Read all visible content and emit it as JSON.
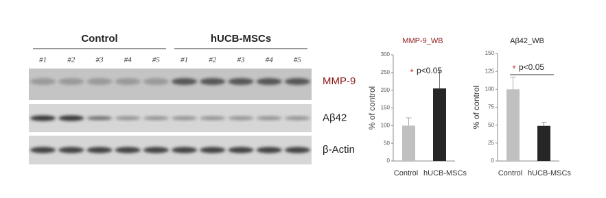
{
  "blot": {
    "groups": [
      "Control",
      "hUCB-MSCs"
    ],
    "lanes": [
      "#1",
      "#2",
      "#3",
      "#4",
      "#5",
      "#1",
      "#2",
      "#3",
      "#4",
      "#5"
    ],
    "rows": [
      "MMP-9",
      "Aβ42",
      "β-Actin"
    ]
  },
  "chart_data": [
    {
      "type": "bar",
      "title": "MMP-9_WB",
      "y_label": "% of control",
      "categories": [
        "Control",
        "hUCB-MSCs"
      ],
      "values": [
        100,
        205
      ],
      "errors": [
        22,
        50
      ],
      "colors": [
        "#c0c0c0",
        "#262626"
      ],
      "ylim": [
        0,
        300
      ],
      "yticks": [
        0,
        50,
        100,
        150,
        200,
        250,
        300
      ],
      "significance_mark": "*",
      "annotation": "p<0.05"
    },
    {
      "type": "bar",
      "title": "Aβ42_WB",
      "y_label": "% of control",
      "categories": [
        "Control",
        "hUCB-MSCs"
      ],
      "values": [
        100,
        49
      ],
      "errors": [
        17,
        5
      ],
      "colors": [
        "#c0c0c0",
        "#262626"
      ],
      "ylim": [
        0,
        150
      ],
      "yticks": [
        0,
        25,
        50,
        75,
        100,
        125,
        150
      ],
      "significance_mark": "*",
      "annotation": "p<0.05"
    }
  ]
}
